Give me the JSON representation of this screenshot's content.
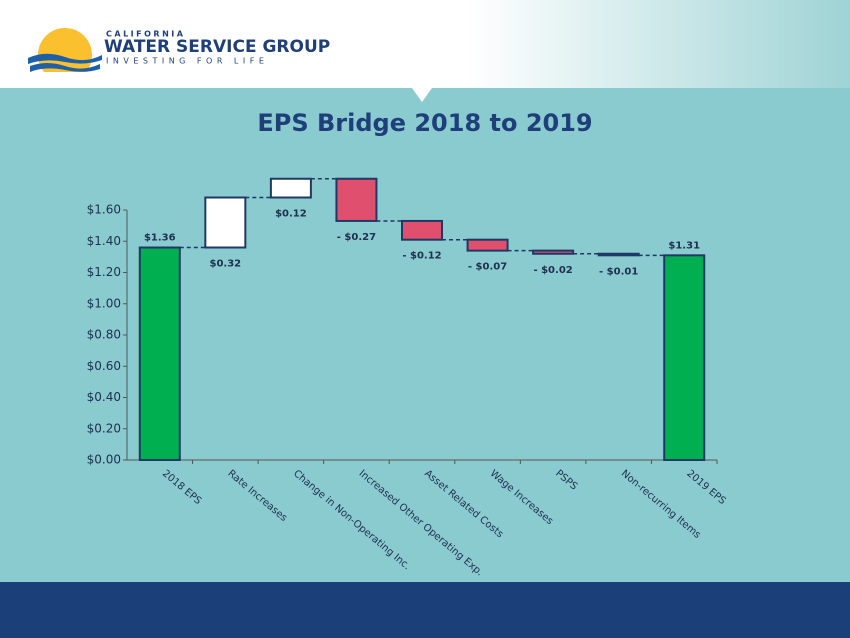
{
  "header": {
    "org_top": "CALIFORNIA",
    "org_name": "WATER SERVICE GROUP",
    "tagline": "INVESTING FOR LIFE"
  },
  "chart_data": {
    "type": "waterfall",
    "title": "EPS Bridge 2018 to 2019",
    "categories": [
      "2018 EPS",
      "Rate Increases",
      "Change in Non-Operating Inc.",
      "Increased Other Operating Exp.",
      "Asset Related Costs",
      "Wage Increases",
      "PSPS",
      "Non-recurring Items",
      "2019 EPS"
    ],
    "values": [
      1.36,
      0.32,
      0.12,
      -0.27,
      -0.12,
      -0.07,
      -0.02,
      -0.01,
      1.31
    ],
    "value_labels": [
      "$1.36",
      "$0.32",
      "$0.12",
      "- $0.27",
      "- $0.12",
      "- $0.07",
      "- $0.02",
      "- $0.01",
      "$1.31"
    ],
    "measure": [
      "total",
      "relative",
      "relative",
      "relative",
      "relative",
      "relative",
      "relative",
      "relative",
      "total"
    ],
    "colors": {
      "total": "#00b050",
      "increase": "#ffffff",
      "decrease": "#e0506e"
    },
    "ylim": [
      0,
      1.6
    ],
    "yticks": [
      {
        "value": 0,
        "label": "$0.00"
      },
      {
        "value": 0.2,
        "label": "$0.20"
      },
      {
        "value": 0.4,
        "label": "$0.40"
      },
      {
        "value": 0.6,
        "label": "$0.60"
      },
      {
        "value": 0.8,
        "label": "$0.80"
      },
      {
        "value": 1.0,
        "label": "$1.00"
      },
      {
        "value": 1.2,
        "label": "$1.20"
      },
      {
        "value": 1.4,
        "label": "$1.40"
      },
      {
        "value": 1.6,
        "label": "$1.60"
      }
    ],
    "grid": false
  }
}
